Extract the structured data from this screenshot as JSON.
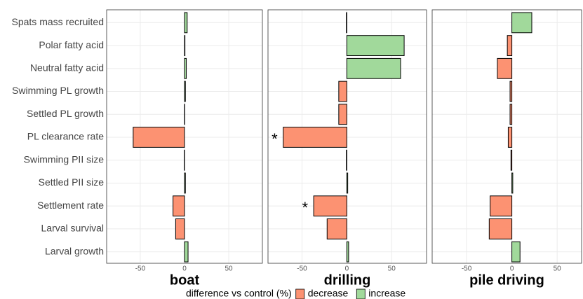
{
  "chart_data": {
    "type": "bar",
    "orientation": "horizontal",
    "grid": true,
    "categories": [
      "Spats mass recruited",
      "Polar fatty acid",
      "Neutral fatty acid",
      "Swimming PL growth",
      "Settled PL growth",
      "PL clearance rate",
      "Swimming PII size",
      "Settled PII size",
      "Settlement rate",
      "Larval survival",
      "Larval growth"
    ],
    "legend_title": "difference vs control (%)",
    "series": [
      {
        "name": "decrease",
        "color": "#fc9272"
      },
      {
        "name": "increase",
        "color": "#a1d99b"
      }
    ],
    "panels": [
      {
        "title": "boat",
        "values": [
          3,
          0.5,
          2,
          1,
          0.3,
          -58,
          -0.3,
          1,
          -13,
          -10,
          4
        ],
        "xlim": [
          -88,
          88
        ],
        "xticks": [
          -50,
          0,
          50
        ],
        "annotations": []
      },
      {
        "title": "drilling",
        "values": [
          -0.5,
          64,
          60,
          -9,
          -9,
          -71,
          -0.5,
          1,
          -37,
          -22,
          2
        ],
        "xlim": [
          -88,
          89
        ],
        "xticks": [
          -50,
          0,
          50
        ],
        "annotations": [
          {
            "category": "PL clearance rate",
            "text": "*"
          },
          {
            "category": "Settlement rate",
            "text": "*"
          }
        ]
      },
      {
        "title": "pile driving",
        "values": [
          22,
          -5,
          -16,
          -2,
          -2,
          -4,
          -1,
          1,
          -24,
          -25,
          9
        ],
        "xlim": [
          -88,
          77
        ],
        "xticks": [
          -50,
          0,
          50
        ],
        "annotations": []
      }
    ]
  }
}
